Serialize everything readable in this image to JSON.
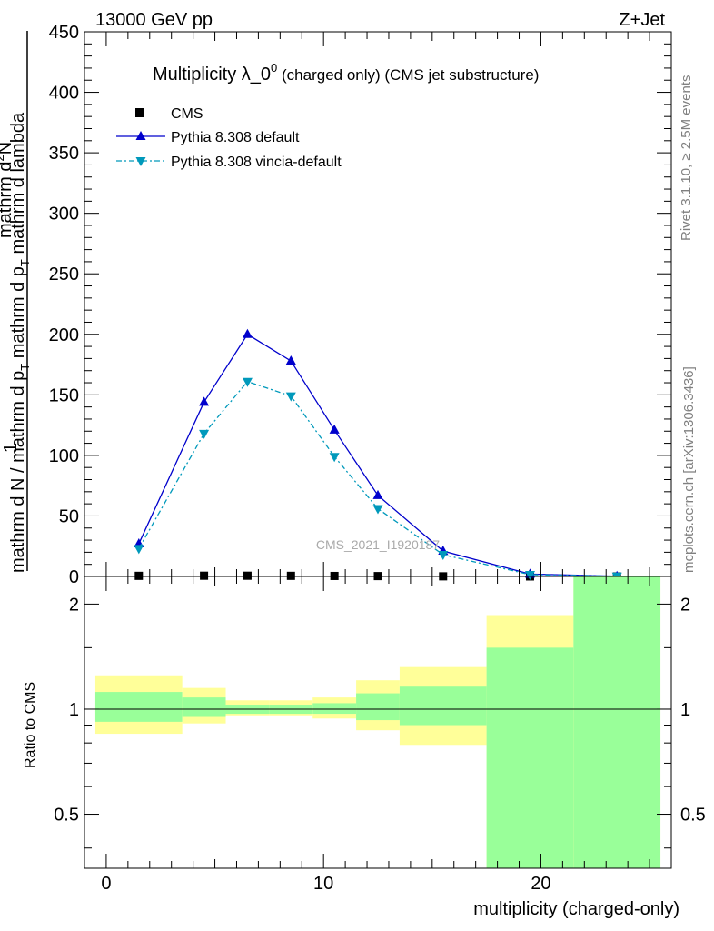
{
  "header": {
    "left": "13000 GeV pp",
    "right": "Z+Jet"
  },
  "plot_title": {
    "main": "Multiplicity λ_0",
    "sup": "0",
    "suffix": " (charged only) (CMS jet substructure)"
  },
  "analysis_tag": "CMS_2021_I1920187",
  "side_labels": {
    "rivet": "Rivet 3.1.10, ≥ 2.5M events",
    "mcplots": "mcplots.cern.ch [arXiv:1306.3436]"
  },
  "ylabel_top": {
    "numerator": "mathrm d",
    "numerator_sup": "2",
    "numerator_tail": "N",
    "line2": "1",
    "denominator": "mathrm d N / mathrm d p",
    "denominator_sub": "T",
    "denominator_tail": " mathrm d p",
    "denominator_sub2": "T",
    "denominator_tail2": " mathrm d lambda"
  },
  "ylabel_bottom": "Ratio to CMS",
  "xlabel": "multiplicity (charged-only)",
  "colors": {
    "cms": "#000000",
    "pythia_default": "#0000cc",
    "vincia": "#0099bb",
    "band_inner": "#99ff99",
    "band_outer": "#ffff99"
  },
  "chart_data": [
    {
      "type": "line",
      "panel": "main",
      "xlim": [
        -1,
        26
      ],
      "ylim": [
        0,
        450
      ],
      "x_ticks": [
        0,
        10,
        20
      ],
      "y_ticks": [
        0,
        50,
        100,
        150,
        200,
        250,
        300,
        350,
        400,
        450
      ],
      "y_tick_labels": [
        "0",
        "50",
        "100",
        "150",
        "200",
        "250",
        "300",
        "350",
        "400",
        "450"
      ],
      "legend_position": "top-left",
      "series": [
        {
          "name": "CMS",
          "marker": "square",
          "x": [
            1.5,
            4.5,
            6.5,
            8.5,
            10.5,
            12.5,
            15.5,
            19.5,
            23.5
          ],
          "y": [
            0.5,
            0.6,
            0.6,
            0.5,
            0.4,
            0.3,
            0.1,
            0.02,
            0.01
          ]
        },
        {
          "name": "Pythia 8.308 default",
          "marker": "triangle-up",
          "style": "solid",
          "x": [
            1.5,
            4.5,
            6.5,
            8.5,
            10.5,
            12.5,
            15.5,
            19.5,
            23.5
          ],
          "y": [
            27,
            144,
            200,
            178,
            121,
            67,
            21,
            2,
            0.2
          ]
        },
        {
          "name": "Pythia 8.308 vincia-default",
          "marker": "triangle-down",
          "style": "dashdot",
          "x": [
            1.5,
            4.5,
            6.5,
            8.5,
            10.5,
            12.5,
            15.5,
            19.5,
            23.5
          ],
          "y": [
            23,
            118,
            161,
            149,
            99,
            56,
            18,
            1.5,
            0.2
          ]
        }
      ]
    },
    {
      "type": "area",
      "panel": "ratio",
      "ylabel": "Ratio to CMS",
      "xlabel": "multiplicity (charged-only)",
      "log_y": true,
      "xlim": [
        -1,
        26
      ],
      "ylim": [
        0.35,
        2.4
      ],
      "x_ticks": [
        0,
        10,
        20
      ],
      "y_ticks": [
        0.5,
        1,
        2
      ],
      "y_tick_labels": [
        "0.5",
        "1",
        "2"
      ],
      "bins": [
        {
          "lo": -0.5,
          "hi": 3.5,
          "inner": [
            0.92,
            1.12
          ],
          "outer": [
            0.85,
            1.25
          ]
        },
        {
          "lo": 3.5,
          "hi": 5.5,
          "inner": [
            0.95,
            1.08
          ],
          "outer": [
            0.91,
            1.15
          ]
        },
        {
          "lo": 5.5,
          "hi": 7.5,
          "inner": [
            0.97,
            1.03
          ],
          "outer": [
            0.96,
            1.06
          ]
        },
        {
          "lo": 7.5,
          "hi": 9.5,
          "inner": [
            0.97,
            1.03
          ],
          "outer": [
            0.96,
            1.06
          ]
        },
        {
          "lo": 9.5,
          "hi": 11.5,
          "inner": [
            0.97,
            1.04
          ],
          "outer": [
            0.94,
            1.08
          ]
        },
        {
          "lo": 11.5,
          "hi": 13.5,
          "inner": [
            0.93,
            1.11
          ],
          "outer": [
            0.87,
            1.21
          ]
        },
        {
          "lo": 13.5,
          "hi": 17.5,
          "inner": [
            0.9,
            1.16
          ],
          "outer": [
            0.79,
            1.32
          ]
        },
        {
          "lo": 17.5,
          "hi": 21.5,
          "inner": [
            0.35,
            1.5
          ],
          "outer": [
            0.35,
            1.86
          ]
        },
        {
          "lo": 21.5,
          "hi": 25.5,
          "inner": [
            0.35,
            2.4
          ],
          "outer": [
            0.35,
            2.4
          ]
        }
      ],
      "reference_line": 1
    }
  ]
}
